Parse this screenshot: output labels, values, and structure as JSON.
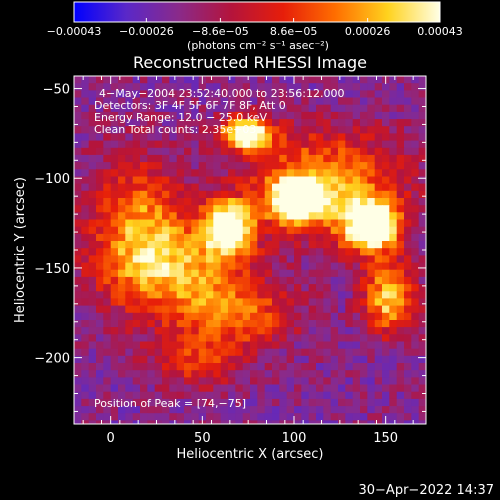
{
  "chart_data": {
    "type": "heatmap",
    "title": "Reconstructed RHESSI Image",
    "xlabel": "Heliocentric X (arcsec)",
    "ylabel": "Heliocentric Y (arcsec)",
    "xlim": [
      -20,
      172
    ],
    "ylim": [
      -237,
      -43
    ],
    "xticks": [
      0,
      50,
      100,
      150
    ],
    "yticks": [
      -50,
      -100,
      -150,
      -200
    ],
    "colorbar": {
      "range": [
        -0.00043,
        0.00043
      ],
      "tick_values": [
        -0.00043,
        -0.00026,
        -8.6e-05,
        8.6e-05,
        0.00026,
        0.00043
      ],
      "tick_labels": [
        "−0.00043",
        "−0.00026",
        "−8.6e−05",
        "8.6e−05",
        "0.00026",
        "0.00043"
      ],
      "unit_label": "(photons cm⁻² s⁻¹ asec⁻²)",
      "colormap": [
        "#0000ff",
        "#5a28c8",
        "#8a2a8a",
        "#b4143c",
        "#e61e0a",
        "#ff6e00",
        "#ffd21e",
        "#ffffe6"
      ]
    },
    "annotations": [
      "4−May−2004 23:52:40.000 to 23:56:12.000",
      "Detectors: 3F 4F 5F 6F 7F 8F, Att 0",
      "Energy Range: 12.0 − 25.0 keV",
      "Clean     Total counts: 2.35e+03"
    ],
    "peak_label": "Position of Peak = [74,−75]",
    "peak": [
      74,
      -75
    ],
    "sources": [
      {
        "x": 72,
        "y": -73,
        "sx": 10,
        "sy": 6,
        "amp": 0.9
      },
      {
        "x": 100,
        "y": -110,
        "sx": 10,
        "sy": 8,
        "amp": 0.95
      },
      {
        "x": 62,
        "y": -125,
        "sx": 9,
        "sy": 10,
        "amp": 0.85
      },
      {
        "x": 140,
        "y": -125,
        "sx": 11,
        "sy": 10,
        "amp": 0.9
      },
      {
        "x": 150,
        "y": -165,
        "sx": 10,
        "sy": 14,
        "amp": 0.6
      },
      {
        "x": 115,
        "y": -100,
        "sx": 30,
        "sy": 20,
        "amp": 0.5
      },
      {
        "x": 35,
        "y": -150,
        "sx": 28,
        "sy": 20,
        "amp": 0.5
      },
      {
        "x": 12,
        "y": -120,
        "sx": 18,
        "sy": 25,
        "amp": 0.4
      },
      {
        "x": 70,
        "y": -175,
        "sx": 20,
        "sy": 12,
        "amp": 0.35
      },
      {
        "x": 45,
        "y": -200,
        "sx": 18,
        "sy": 10,
        "amp": 0.3
      }
    ]
  },
  "date_stamp": "30−Apr−2022 14:37"
}
